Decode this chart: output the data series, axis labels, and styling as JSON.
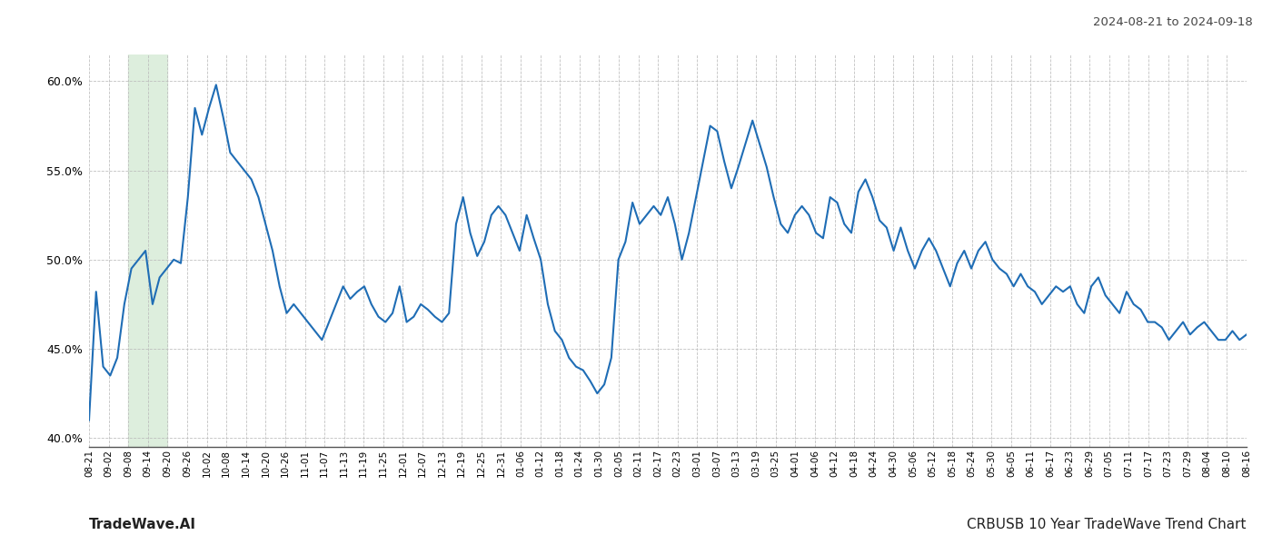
{
  "title_top_right": "2024-08-21 to 2024-09-18",
  "bottom_left": "TradeWave.AI",
  "bottom_right": "CRBUSB 10 Year TradeWave Trend Chart",
  "line_color": "#1f6db5",
  "line_width": 1.5,
  "bg_color": "#ffffff",
  "grid_color": "#bbbbbb",
  "highlight_color": "#ddeedd",
  "ylim": [
    39.5,
    61.5
  ],
  "yticks": [
    40.0,
    45.0,
    50.0,
    55.0,
    60.0
  ],
  "x_labels": [
    "08-21",
    "09-02",
    "09-08",
    "09-14",
    "09-20",
    "09-26",
    "10-02",
    "10-08",
    "10-14",
    "10-20",
    "10-26",
    "11-01",
    "11-07",
    "11-13",
    "11-19",
    "11-25",
    "12-01",
    "12-07",
    "12-13",
    "12-19",
    "12-25",
    "12-31",
    "01-06",
    "01-12",
    "01-18",
    "01-24",
    "01-30",
    "02-05",
    "02-11",
    "02-17",
    "02-23",
    "03-01",
    "03-07",
    "03-13",
    "03-19",
    "03-25",
    "04-01",
    "04-06",
    "04-12",
    "04-18",
    "04-24",
    "04-30",
    "05-06",
    "05-12",
    "05-18",
    "05-24",
    "05-30",
    "06-05",
    "06-11",
    "06-17",
    "06-23",
    "06-29",
    "07-05",
    "07-11",
    "07-17",
    "07-23",
    "07-29",
    "08-04",
    "08-10",
    "08-16"
  ],
  "highlight_start_label": "09-08",
  "highlight_end_label": "09-20",
  "values": [
    41.0,
    48.2,
    44.0,
    43.5,
    44.5,
    47.5,
    49.5,
    50.0,
    50.5,
    47.5,
    49.0,
    49.5,
    50.0,
    49.8,
    53.5,
    58.5,
    57.0,
    58.5,
    59.8,
    58.0,
    56.0,
    55.5,
    55.0,
    54.5,
    53.5,
    52.0,
    50.5,
    48.5,
    47.0,
    47.5,
    47.0,
    46.5,
    46.0,
    45.5,
    46.5,
    47.5,
    48.5,
    47.8,
    48.2,
    48.5,
    47.5,
    46.8,
    46.5,
    47.0,
    48.5,
    46.5,
    46.8,
    47.5,
    47.2,
    46.8,
    46.5,
    47.0,
    52.0,
    53.5,
    51.5,
    50.2,
    51.0,
    52.5,
    53.0,
    52.5,
    51.5,
    50.5,
    52.5,
    51.2,
    50.0,
    47.5,
    46.0,
    45.5,
    44.5,
    44.0,
    43.8,
    43.2,
    42.5,
    43.0,
    44.5,
    50.0,
    51.0,
    53.2,
    52.0,
    52.5,
    53.0,
    52.5,
    53.5,
    52.0,
    50.0,
    51.5,
    53.5,
    55.5,
    57.5,
    57.2,
    55.5,
    54.0,
    55.2,
    56.5,
    57.8,
    56.5,
    55.2,
    53.5,
    52.0,
    51.5,
    52.5,
    53.0,
    52.5,
    51.5,
    51.2,
    53.5,
    53.2,
    52.0,
    51.5,
    53.8,
    54.5,
    53.5,
    52.2,
    51.8,
    50.5,
    51.8,
    50.5,
    49.5,
    50.5,
    51.2,
    50.5,
    49.5,
    48.5,
    49.8,
    50.5,
    49.5,
    50.5,
    51.0,
    50.0,
    49.5,
    49.2,
    48.5,
    49.2,
    48.5,
    48.2,
    47.5,
    48.0,
    48.5,
    48.2,
    48.5,
    47.5,
    47.0,
    48.5,
    49.0,
    48.0,
    47.5,
    47.0,
    48.2,
    47.5,
    47.2,
    46.5,
    46.5,
    46.2,
    45.5,
    46.0,
    46.5,
    45.8,
    46.2,
    46.5,
    46.0,
    45.5,
    45.5,
    46.0,
    45.5,
    45.8
  ]
}
